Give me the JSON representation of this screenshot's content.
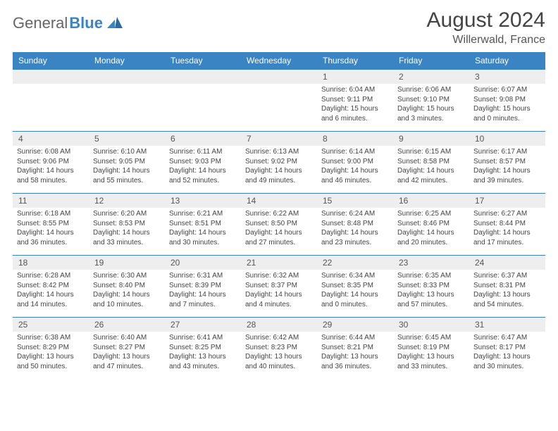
{
  "logo": {
    "text1": "General",
    "text2": "Blue"
  },
  "title": "August 2024",
  "location": "Willerwald, France",
  "header_color": "#3a84c4",
  "grid_border_color": "#3a84c4",
  "daynum_bg": "#eeeeee",
  "background_color": "#ffffff",
  "text_color": "#444444",
  "font_family": "Arial",
  "title_fontsize": 30,
  "location_fontsize": 16,
  "header_fontsize": 12,
  "daynum_fontsize": 12,
  "detail_fontsize": 10,
  "weekdays": [
    "Sunday",
    "Monday",
    "Tuesday",
    "Wednesday",
    "Thursday",
    "Friday",
    "Saturday"
  ],
  "weeks": [
    [
      null,
      null,
      null,
      null,
      {
        "n": "1",
        "sunrise": "6:04 AM",
        "sunset": "9:11 PM",
        "daylight": "15 hours and 6 minutes."
      },
      {
        "n": "2",
        "sunrise": "6:06 AM",
        "sunset": "9:10 PM",
        "daylight": "15 hours and 3 minutes."
      },
      {
        "n": "3",
        "sunrise": "6:07 AM",
        "sunset": "9:08 PM",
        "daylight": "15 hours and 0 minutes."
      }
    ],
    [
      {
        "n": "4",
        "sunrise": "6:08 AM",
        "sunset": "9:06 PM",
        "daylight": "14 hours and 58 minutes."
      },
      {
        "n": "5",
        "sunrise": "6:10 AM",
        "sunset": "9:05 PM",
        "daylight": "14 hours and 55 minutes."
      },
      {
        "n": "6",
        "sunrise": "6:11 AM",
        "sunset": "9:03 PM",
        "daylight": "14 hours and 52 minutes."
      },
      {
        "n": "7",
        "sunrise": "6:13 AM",
        "sunset": "9:02 PM",
        "daylight": "14 hours and 49 minutes."
      },
      {
        "n": "8",
        "sunrise": "6:14 AM",
        "sunset": "9:00 PM",
        "daylight": "14 hours and 46 minutes."
      },
      {
        "n": "9",
        "sunrise": "6:15 AM",
        "sunset": "8:58 PM",
        "daylight": "14 hours and 42 minutes."
      },
      {
        "n": "10",
        "sunrise": "6:17 AM",
        "sunset": "8:57 PM",
        "daylight": "14 hours and 39 minutes."
      }
    ],
    [
      {
        "n": "11",
        "sunrise": "6:18 AM",
        "sunset": "8:55 PM",
        "daylight": "14 hours and 36 minutes."
      },
      {
        "n": "12",
        "sunrise": "6:20 AM",
        "sunset": "8:53 PM",
        "daylight": "14 hours and 33 minutes."
      },
      {
        "n": "13",
        "sunrise": "6:21 AM",
        "sunset": "8:51 PM",
        "daylight": "14 hours and 30 minutes."
      },
      {
        "n": "14",
        "sunrise": "6:22 AM",
        "sunset": "8:50 PM",
        "daylight": "14 hours and 27 minutes."
      },
      {
        "n": "15",
        "sunrise": "6:24 AM",
        "sunset": "8:48 PM",
        "daylight": "14 hours and 23 minutes."
      },
      {
        "n": "16",
        "sunrise": "6:25 AM",
        "sunset": "8:46 PM",
        "daylight": "14 hours and 20 minutes."
      },
      {
        "n": "17",
        "sunrise": "6:27 AM",
        "sunset": "8:44 PM",
        "daylight": "14 hours and 17 minutes."
      }
    ],
    [
      {
        "n": "18",
        "sunrise": "6:28 AM",
        "sunset": "8:42 PM",
        "daylight": "14 hours and 14 minutes."
      },
      {
        "n": "19",
        "sunrise": "6:30 AM",
        "sunset": "8:40 PM",
        "daylight": "14 hours and 10 minutes."
      },
      {
        "n": "20",
        "sunrise": "6:31 AM",
        "sunset": "8:39 PM",
        "daylight": "14 hours and 7 minutes."
      },
      {
        "n": "21",
        "sunrise": "6:32 AM",
        "sunset": "8:37 PM",
        "daylight": "14 hours and 4 minutes."
      },
      {
        "n": "22",
        "sunrise": "6:34 AM",
        "sunset": "8:35 PM",
        "daylight": "14 hours and 0 minutes."
      },
      {
        "n": "23",
        "sunrise": "6:35 AM",
        "sunset": "8:33 PM",
        "daylight": "13 hours and 57 minutes."
      },
      {
        "n": "24",
        "sunrise": "6:37 AM",
        "sunset": "8:31 PM",
        "daylight": "13 hours and 54 minutes."
      }
    ],
    [
      {
        "n": "25",
        "sunrise": "6:38 AM",
        "sunset": "8:29 PM",
        "daylight": "13 hours and 50 minutes."
      },
      {
        "n": "26",
        "sunrise": "6:40 AM",
        "sunset": "8:27 PM",
        "daylight": "13 hours and 47 minutes."
      },
      {
        "n": "27",
        "sunrise": "6:41 AM",
        "sunset": "8:25 PM",
        "daylight": "13 hours and 43 minutes."
      },
      {
        "n": "28",
        "sunrise": "6:42 AM",
        "sunset": "8:23 PM",
        "daylight": "13 hours and 40 minutes."
      },
      {
        "n": "29",
        "sunrise": "6:44 AM",
        "sunset": "8:21 PM",
        "daylight": "13 hours and 36 minutes."
      },
      {
        "n": "30",
        "sunrise": "6:45 AM",
        "sunset": "8:19 PM",
        "daylight": "13 hours and 33 minutes."
      },
      {
        "n": "31",
        "sunrise": "6:47 AM",
        "sunset": "8:17 PM",
        "daylight": "13 hours and 30 minutes."
      }
    ]
  ],
  "labels": {
    "sunrise": "Sunrise:",
    "sunset": "Sunset:",
    "daylight": "Daylight:"
  }
}
